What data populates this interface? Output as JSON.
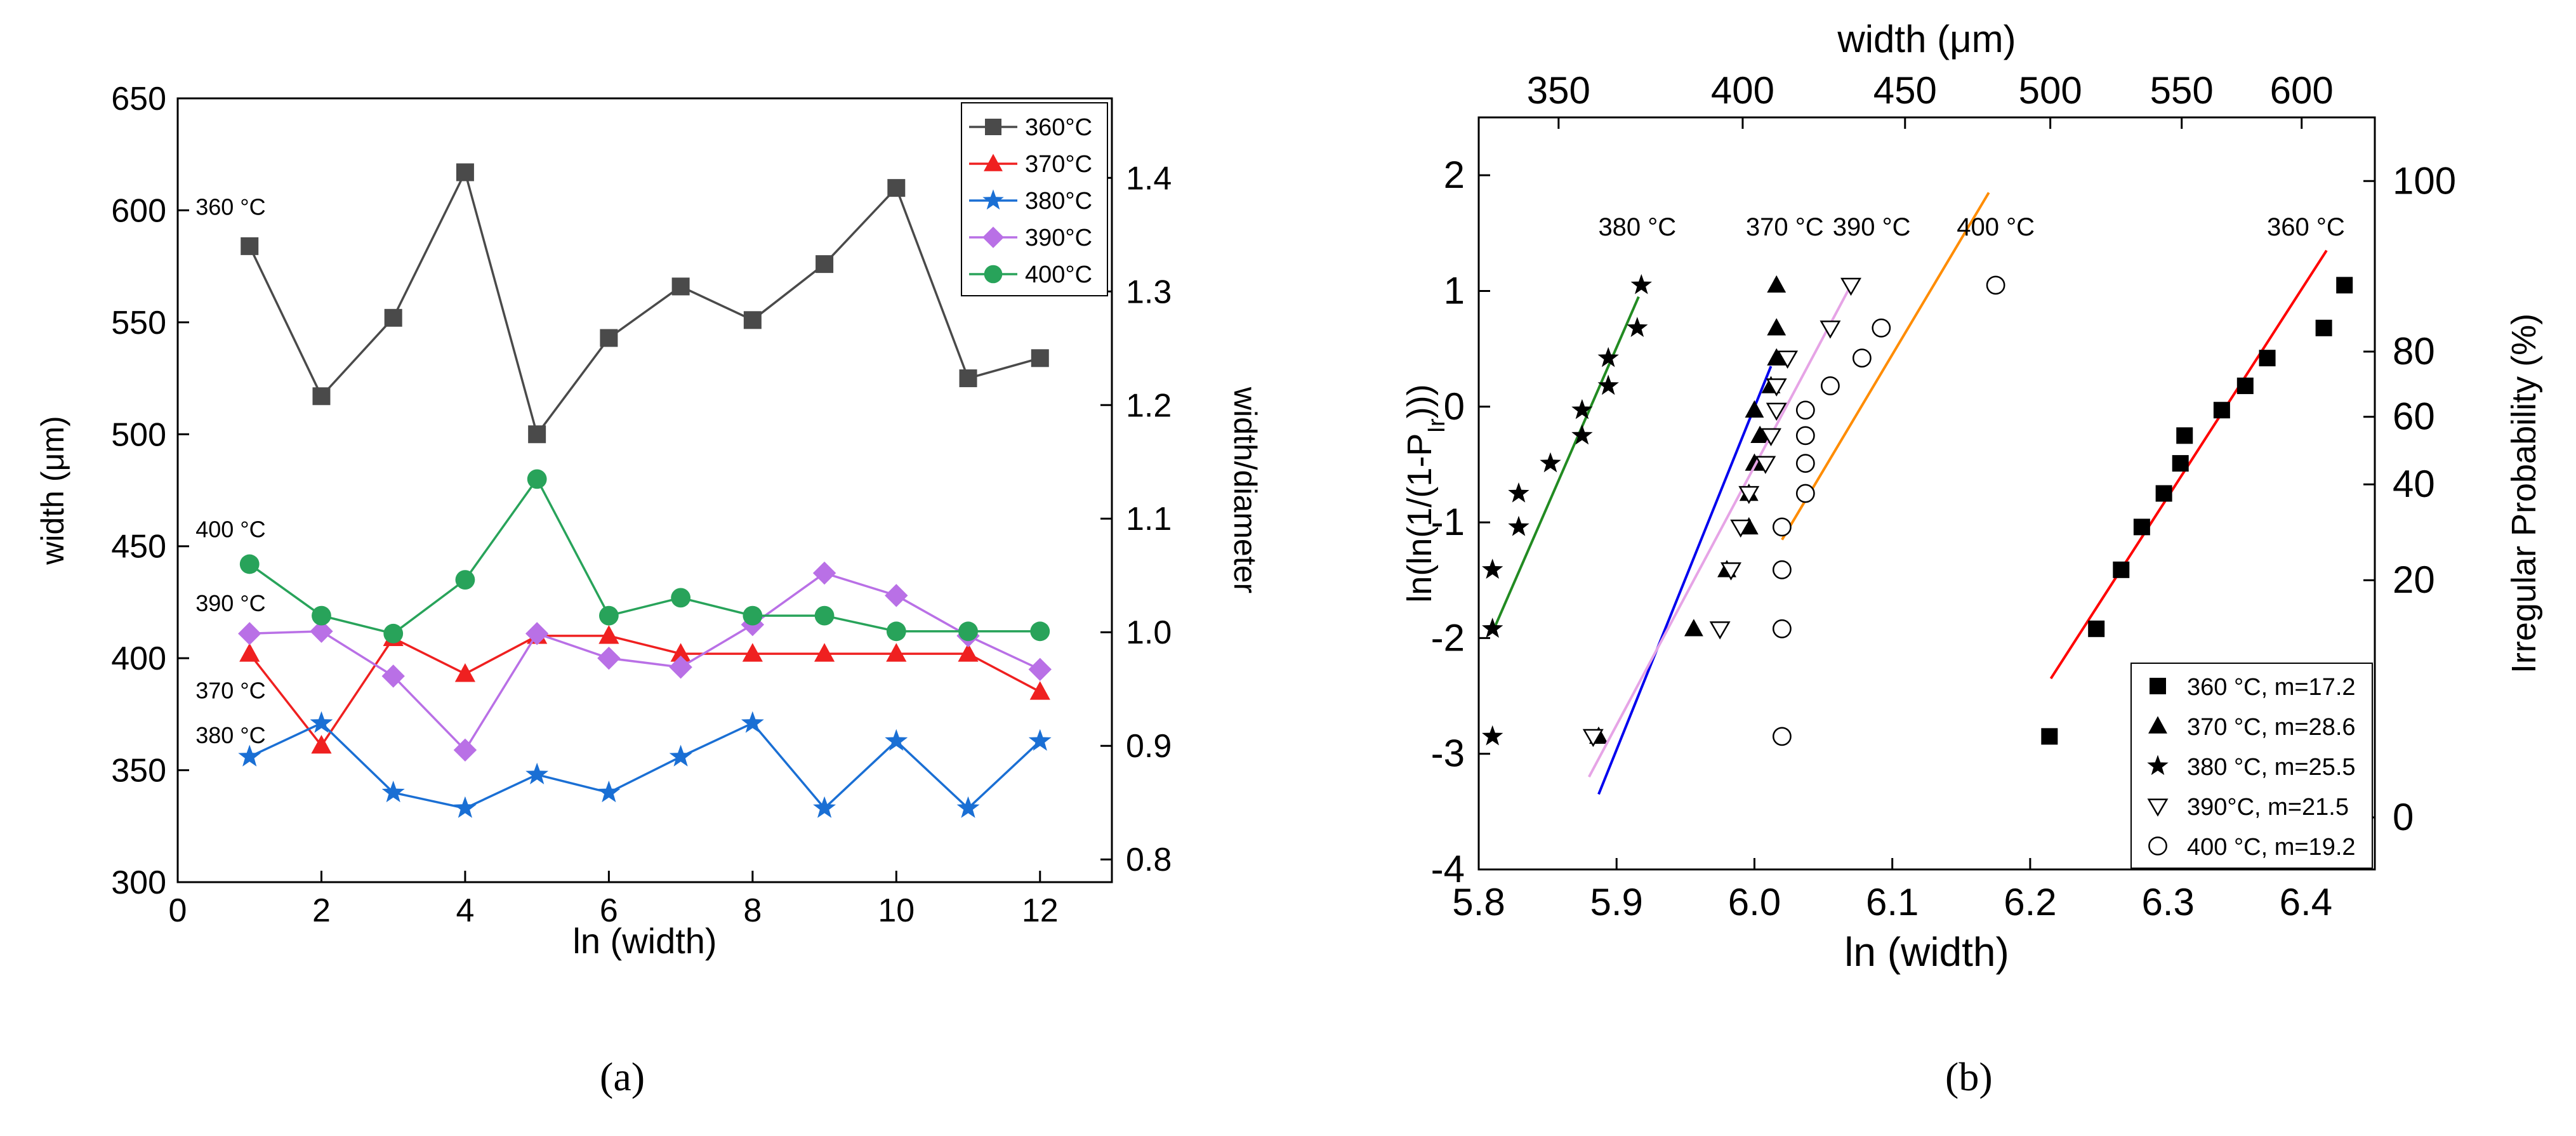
{
  "panel_labels": {
    "a": "(a)",
    "b": "(b)"
  },
  "chart_data": [
    {
      "type": "line",
      "xlabel": "ln (width)",
      "ylabel": "width (μm)",
      "y2label": "width/diameter",
      "xlim": [
        0,
        13
      ],
      "ylim": [
        300,
        650
      ],
      "y2lim": [
        0.78,
        1.47
      ],
      "xticks": [
        0,
        2,
        4,
        6,
        8,
        10,
        12
      ],
      "yticks": [
        300,
        350,
        400,
        450,
        500,
        550,
        600,
        650
      ],
      "y2ticks": [
        0.8,
        0.9,
        1.0,
        1.1,
        1.2,
        1.3,
        1.4
      ],
      "legend_position": "top-right",
      "x": [
        1,
        2,
        3,
        4,
        5,
        6,
        7,
        8,
        9,
        10,
        11,
        12
      ],
      "series": [
        {
          "name": "360°C",
          "color": "#4a4a4a",
          "marker": "square",
          "values": [
            584,
            517,
            552,
            617,
            500,
            543,
            566,
            551,
            576,
            610,
            525,
            534
          ]
        },
        {
          "name": "370°C",
          "color": "#ef2020",
          "marker": "triangle",
          "values": [
            402,
            361,
            409,
            393,
            410,
            410,
            402,
            402,
            402,
            402,
            402,
            385
          ]
        },
        {
          "name": "380°C",
          "color": "#1a6fd4",
          "marker": "star",
          "values": [
            356,
            371,
            340,
            333,
            348,
            340,
            356,
            371,
            333,
            363,
            333,
            363
          ]
        },
        {
          "name": "390°C",
          "color": "#b970e6",
          "marker": "diamond",
          "values": [
            411,
            412,
            392,
            359,
            411,
            400,
            396,
            415,
            438,
            428,
            410,
            395
          ]
        },
        {
          "name": "400°C",
          "color": "#28a35a",
          "marker": "circle",
          "values": [
            442,
            419,
            411,
            435,
            480,
            419,
            427,
            419,
            419,
            412,
            412,
            412
          ]
        }
      ],
      "annotations": [
        {
          "text": "360 °C",
          "x": 1,
          "y": 598
        },
        {
          "text": "400 °C",
          "x": 1,
          "y": 454
        },
        {
          "text": "390 °C",
          "x": 1,
          "y": 421
        },
        {
          "text": "370 °C",
          "x": 1,
          "y": 382
        },
        {
          "text": "380 °C",
          "x": 1,
          "y": 362
        }
      ]
    },
    {
      "type": "scatter",
      "xlabel": "ln (width)",
      "ylabel": "ln(ln(1/(1-P",
      "ylabel_sub": "Ir",
      "ylabel_end": ")))",
      "x2label": "width (μm)",
      "y2label": "Irregular Probability (%)",
      "xlim": [
        5.8,
        6.45
      ],
      "ylim": [
        -4,
        2.5
      ],
      "xticks": [
        5.8,
        5.9,
        6.0,
        6.1,
        6.2,
        6.3,
        6.4
      ],
      "yticks": [
        -4,
        -3,
        -2,
        -1,
        0,
        1,
        2
      ],
      "x2ticks": [
        350,
        400,
        450,
        500,
        550,
        600
      ],
      "y2ticks": [
        0,
        20,
        40,
        60,
        80,
        100
      ],
      "legend_position": "bottom-right",
      "series": [
        {
          "name": "360 °C, m=17.2",
          "marker": "square-filled",
          "fit_color": "#ff0000",
          "fit": [
            [
              6.215,
              -2.35
            ],
            [
              6.415,
              1.35
            ]
          ],
          "x": [
            6.214,
            6.248,
            6.266,
            6.281,
            6.297,
            6.309,
            6.312,
            6.339,
            6.356,
            6.372,
            6.413,
            6.428
          ],
          "y": [
            -2.85,
            -1.92,
            -1.41,
            -1.04,
            -0.75,
            -0.49,
            -0.25,
            -0.03,
            0.18,
            0.42,
            0.68,
            1.05
          ]
        },
        {
          "name": "370 °C, m=28.6",
          "marker": "triangle-filled",
          "fit_color": "#0000ee",
          "fit": [
            [
              5.887,
              -3.35
            ],
            [
              6.012,
              0.35
            ]
          ],
          "x": [
            5.887,
            5.956,
            5.98,
            5.996,
            5.996,
            6.0,
            6.004,
            6.0,
            6.012,
            6.016,
            6.016,
            6.016
          ],
          "y": [
            -2.85,
            -1.92,
            -1.41,
            -1.04,
            -0.75,
            -0.49,
            -0.25,
            -0.03,
            0.18,
            0.42,
            0.68,
            1.05
          ]
        },
        {
          "name": "380 °C, m=25.5",
          "marker": "star-filled",
          "fit_color": "#228b22",
          "fit": [
            [
              5.81,
              -1.95
            ],
            [
              5.916,
              0.95
            ]
          ],
          "x": [
            5.81,
            5.81,
            5.81,
            5.829,
            5.829,
            5.852,
            5.875,
            5.875,
            5.894,
            5.894,
            5.915,
            5.918
          ],
          "y": [
            -2.85,
            -1.92,
            -1.41,
            -1.04,
            -0.75,
            -0.49,
            -0.25,
            -0.03,
            0.18,
            0.42,
            0.68,
            1.05
          ]
        },
        {
          "name": "390°C, m=21.5",
          "marker": "triangle-down-open",
          "fit_color": "#e6a4e6",
          "fit": [
            [
              5.88,
              -3.2
            ],
            [
              6.07,
              1.05
            ]
          ],
          "x": [
            5.883,
            5.975,
            5.983,
            5.99,
            5.996,
            6.008,
            6.012,
            6.016,
            6.016,
            6.024,
            6.055,
            6.07
          ],
          "y": [
            -2.85,
            -1.92,
            -1.41,
            -1.04,
            -0.75,
            -0.49,
            -0.25,
            -0.03,
            0.18,
            0.42,
            0.68,
            1.05
          ]
        },
        {
          "name": "400 °C, m=19.2",
          "marker": "circle-open",
          "fit_color": "#ff8c00",
          "fit": [
            [
              6.02,
              -1.15
            ],
            [
              6.17,
              1.85
            ]
          ],
          "x": [
            6.02,
            6.02,
            6.02,
            6.02,
            6.037,
            6.037,
            6.037,
            6.037,
            6.055,
            6.078,
            6.092,
            6.175
          ],
          "y": [
            -2.85,
            -1.92,
            -1.41,
            -1.04,
            -0.75,
            -0.49,
            -0.25,
            -0.03,
            0.18,
            0.42,
            0.68,
            1.05
          ]
        }
      ],
      "annotations": [
        {
          "text": "380 °C",
          "x": 5.915,
          "y": 1.48
        },
        {
          "text": "370 °C",
          "x": 6.022,
          "y": 1.48
        },
        {
          "text": "390 °C",
          "x": 6.085,
          "y": 1.48
        },
        {
          "text": "400 °C",
          "x": 6.175,
          "y": 1.48
        },
        {
          "text": "360 °C",
          "x": 6.4,
          "y": 1.48
        }
      ]
    }
  ]
}
